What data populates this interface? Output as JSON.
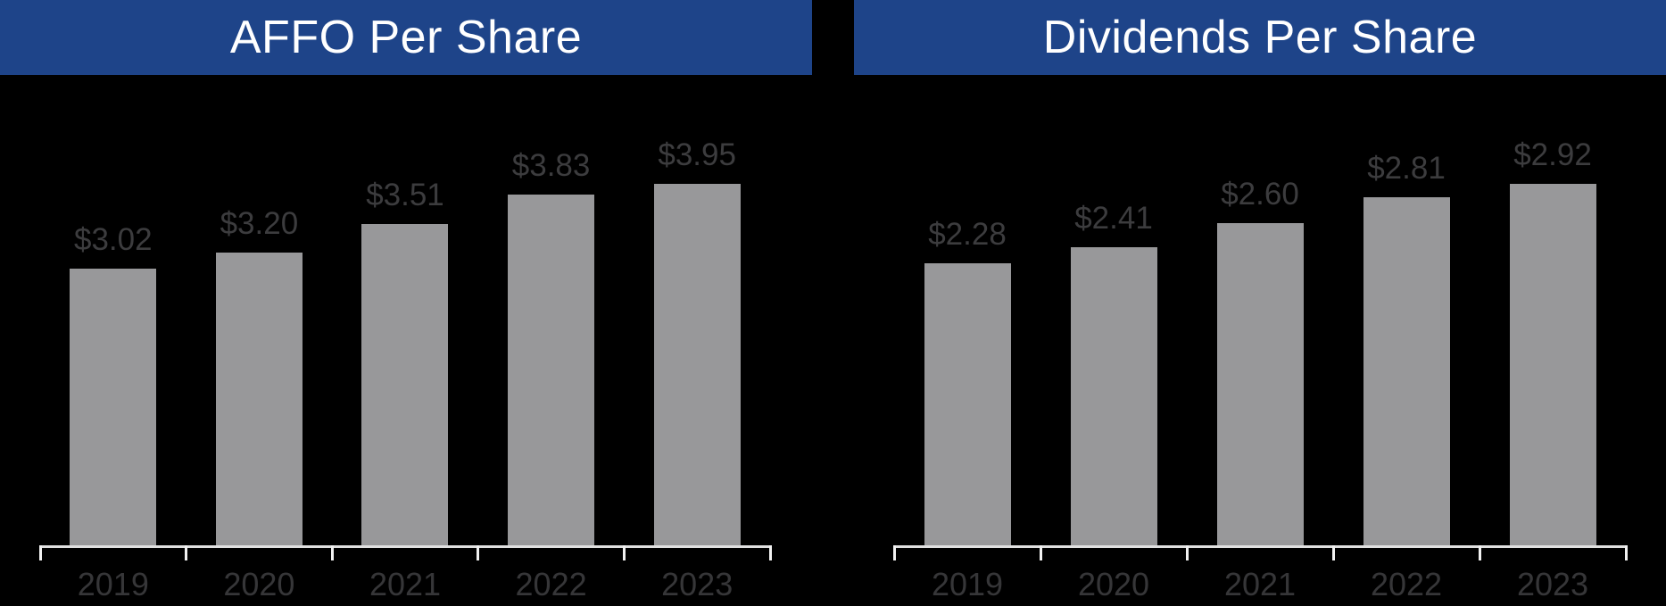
{
  "page": {
    "background_color": "#000000"
  },
  "banners": {
    "bg_color": "#1E4489",
    "text_color": "#FFFFFF"
  },
  "chart_data": [
    {
      "type": "bar",
      "title": "AFFO Per Share",
      "categories": [
        "2019",
        "2020",
        "2021",
        "2022",
        "2023"
      ],
      "values": [
        3.02,
        3.2,
        3.51,
        3.83,
        3.95
      ],
      "data_labels": [
        "$3.02",
        "$3.20",
        "$3.51",
        "$3.83",
        "$3.95"
      ],
      "xlabel": "",
      "ylabel": "",
      "baseline": 0,
      "grid": false,
      "legend": false,
      "value_axis_visible": false,
      "bar_color": "#98989A",
      "data_label_color": "#3C3C3E",
      "tick_label_color": "#363638",
      "axis_color": "#E0E0E0",
      "tick_color": "#F2F2F2"
    },
    {
      "type": "bar",
      "title": "Dividends Per Share",
      "categories": [
        "2019",
        "2020",
        "2021",
        "2022",
        "2023"
      ],
      "values": [
        2.28,
        2.41,
        2.6,
        2.81,
        2.92
      ],
      "data_labels": [
        "$2.28",
        "$2.41",
        "$2.60",
        "$2.81",
        "$2.92"
      ],
      "xlabel": "",
      "ylabel": "",
      "baseline": 0,
      "grid": false,
      "legend": false,
      "value_axis_visible": false,
      "bar_color": "#98989A",
      "data_label_color": "#3C3C3E",
      "tick_label_color": "#363638",
      "axis_color": "#E0E0E0",
      "tick_color": "#F2F2F2"
    }
  ]
}
